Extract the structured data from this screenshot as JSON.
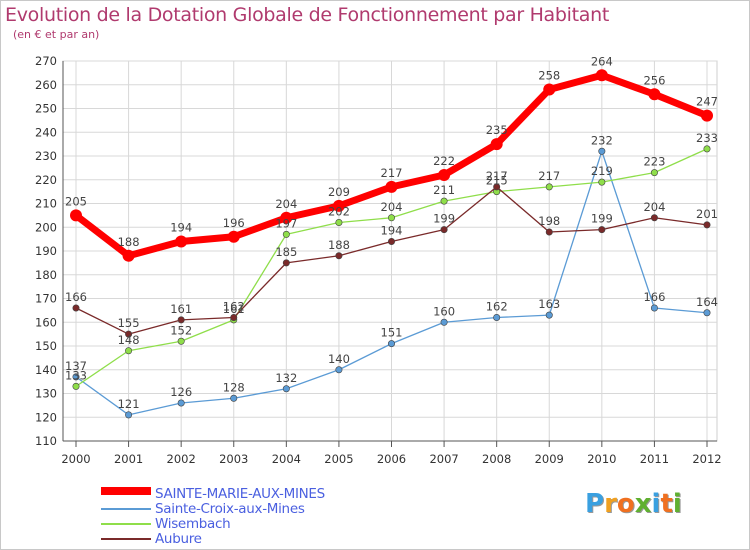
{
  "chart_data": {
    "type": "line",
    "title": "Evolution de la Dotation Globale de Fonctionnement par Habitant",
    "subtitle": "(en € et par an)",
    "xlabel": "",
    "ylabel": "",
    "ylim": [
      110,
      270
    ],
    "yticks": [
      "110",
      "120",
      "130",
      "140",
      "150",
      "160",
      "170",
      "180",
      "190",
      "200",
      "210",
      "220",
      "230",
      "240",
      "250",
      "260",
      "270"
    ],
    "categories": [
      "2000",
      "2001",
      "2002",
      "2003",
      "2004",
      "2005",
      "2006",
      "2007",
      "2008",
      "2009",
      "2010",
      "2011",
      "2012"
    ],
    "grid": true,
    "legend_position": "bottom-left",
    "series": [
      {
        "name": "SAINTE-MARIE-AUX-MINES",
        "color": "#ff0000",
        "line_width": 7,
        "values": [
          205,
          188,
          194,
          196,
          204,
          209,
          217,
          222,
          235,
          258,
          264,
          256,
          247
        ]
      },
      {
        "name": "Sainte-Croix-aux-Mines",
        "color": "#5b9bd5",
        "line_width": 1.3,
        "values": [
          137,
          121,
          126,
          128,
          132,
          140,
          151,
          160,
          162,
          163,
          232,
          166,
          164
        ]
      },
      {
        "name": "Wisembach",
        "color": "#8fde4a",
        "line_width": 1.3,
        "values": [
          133,
          148,
          152,
          161,
          197,
          202,
          204,
          211,
          215,
          217,
          219,
          223,
          233
        ]
      },
      {
        "name": "Aubure",
        "color": "#7a2a2a",
        "line_width": 1.3,
        "values": [
          166,
          155,
          161,
          162,
          185,
          188,
          194,
          199,
          217,
          198,
          199,
          204,
          201
        ]
      }
    ]
  },
  "logo": {
    "letters": [
      "P",
      "r",
      "o",
      "x",
      "i",
      "t",
      "i"
    ],
    "colors": [
      "#3aa0e0",
      "#f0a020",
      "#f07020",
      "#60b030",
      "#3aa0e0",
      "#f07020",
      "#60b030"
    ]
  }
}
